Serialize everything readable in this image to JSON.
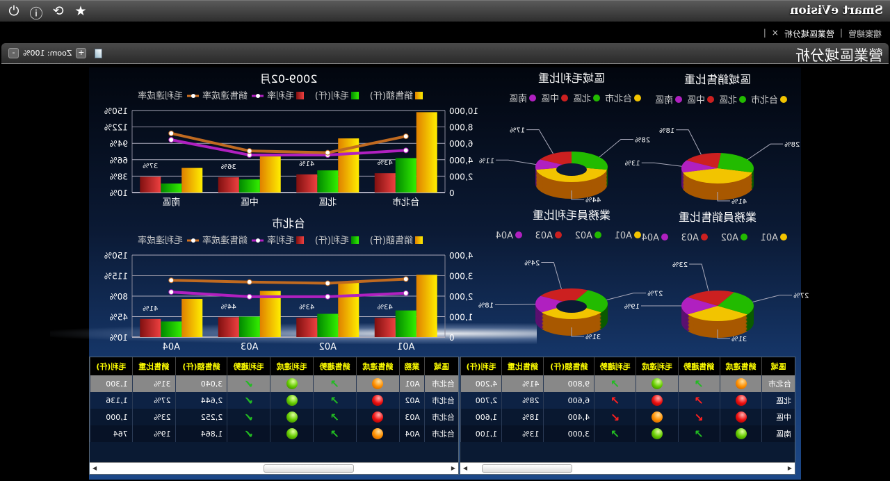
{
  "app": {
    "title": "Smart eVision",
    "icons": [
      "star-icon",
      "refresh-icon",
      "help-icon",
      "power-icon"
    ]
  },
  "tabs": [
    {
      "label": "檔案總管"
    },
    {
      "label": "營業區域分析",
      "close": "×"
    }
  ],
  "page": {
    "title": "營業區域分析",
    "zoom_label": "Zoom: 100%",
    "zoom_in": "+",
    "zoom_out": "-"
  },
  "colors": {
    "sales": "#f5c000",
    "profit": "#22cc00",
    "margin": "#d02020",
    "sales_rate": "#b020c0",
    "profit_rate": "#d07020",
    "purple": "#b020c0"
  },
  "chart_data": [
    {
      "type": "bar",
      "title": "2009-02月",
      "categories": [
        "台北市",
        "北區",
        "中區",
        "南區"
      ],
      "legend": [
        "銷售額(仟)",
        "毛利(仟)",
        "毛利率",
        "銷售達成率",
        "毛利達成率"
      ],
      "left_axis": {
        "range": [
          0,
          10000
        ],
        "ticks": [
          "0",
          "2,000",
          "4,000",
          "6,000",
          "8,000",
          "10,000"
        ]
      },
      "right_axis": {
        "range": [
          10,
          150
        ],
        "ticks": [
          "10%",
          "38%",
          "66%",
          "94%",
          "122%",
          "150%"
        ]
      },
      "series": [
        {
          "name": "銷售額(仟)",
          "kind": "bar",
          "axis": "left",
          "values": [
            9800,
            6600,
            4400,
            3000
          ]
        },
        {
          "name": "毛利(仟)",
          "kind": "bar",
          "axis": "left",
          "values": [
            4200,
            2700,
            1600,
            1100
          ]
        },
        {
          "name": "毛利率",
          "kind": "bar",
          "axis": "right",
          "values": [
            43,
            41,
            36,
            37
          ],
          "labels": [
            "43%",
            "41%",
            "36%",
            "37%"
          ]
        },
        {
          "name": "銷售達成率",
          "kind": "line",
          "axis": "right",
          "values": [
            82,
            74,
            74,
            100
          ]
        },
        {
          "name": "毛利達成率",
          "kind": "line",
          "axis": "right",
          "values": [
            106,
            78,
            81,
            111
          ]
        }
      ]
    },
    {
      "type": "bar",
      "title": "台北市",
      "categories": [
        "A01",
        "A02",
        "A03",
        "A04"
      ],
      "legend": [
        "銷售額(仟)",
        "毛利(仟)",
        "毛利率",
        "銷售達成率",
        "毛利達成率"
      ],
      "left_axis": {
        "range": [
          0,
          4000
        ],
        "ticks": [
          "0",
          "1,000",
          "2,000",
          "3,000",
          "4,000"
        ]
      },
      "right_axis": {
        "range": [
          10,
          150
        ],
        "ticks": [
          "10%",
          "45%",
          "80%",
          "115%",
          "150%"
        ]
      },
      "series": [
        {
          "name": "銷售額(仟)",
          "kind": "bar",
          "axis": "left",
          "values": [
            3040,
            2644,
            2252,
            1864
          ]
        },
        {
          "name": "毛利(仟)",
          "kind": "bar",
          "axis": "left",
          "values": [
            1300,
            1136,
            1000,
            764
          ]
        },
        {
          "name": "毛利率",
          "kind": "bar",
          "axis": "right",
          "values": [
            43,
            43,
            44,
            41
          ],
          "labels": [
            "43%",
            "43%",
            "44%",
            "41%"
          ]
        },
        {
          "name": "銷售達成率",
          "kind": "line",
          "axis": "right",
          "values": [
            85,
            79,
            79,
            87
          ]
        },
        {
          "name": "毛利達成率",
          "kind": "line",
          "axis": "right",
          "values": [
            109,
            102,
            104,
            107
          ]
        }
      ]
    },
    {
      "type": "pie",
      "title": "區域銷售比重",
      "categories": [
        "台北市",
        "北區",
        "中區",
        "南區"
      ],
      "values": [
        41,
        28,
        18,
        13
      ],
      "labels": [
        "41%",
        "28%",
        "18%",
        "13%"
      ],
      "donut": false
    },
    {
      "type": "pie",
      "title": "區域毛利比重",
      "categories": [
        "台北市",
        "北區",
        "中區",
        "南區"
      ],
      "values": [
        44,
        28,
        17,
        11
      ],
      "labels": [
        "44%",
        "28%",
        "17%",
        "11%"
      ],
      "donut": true
    },
    {
      "type": "pie",
      "title": "業務員銷售比重",
      "categories": [
        "A01",
        "A02",
        "A03",
        "A04"
      ],
      "values": [
        31,
        27,
        23,
        19
      ],
      "labels": [
        "31%",
        "27%",
        "23%",
        "19%"
      ],
      "donut": false
    },
    {
      "type": "pie",
      "title": "業務員毛利比重",
      "categories": [
        "A01",
        "A02",
        "A03",
        "A04"
      ],
      "values": [
        31,
        27,
        24,
        18
      ],
      "labels": [
        "31%",
        "27%",
        "24%",
        "18%"
      ],
      "donut": true
    }
  ],
  "region_table": {
    "headers": [
      "區域",
      "銷售達成",
      "銷售趨勢",
      "毛利達成",
      "毛利趨勢",
      "銷售額(仟)",
      "銷售比重",
      "毛利(仟)"
    ],
    "rows": [
      {
        "region": "台北市",
        "sales_status": "orange",
        "sales_trend": "up-green",
        "profit_status": "green",
        "profit_trend": "up-green",
        "sales": "9,800",
        "share": "41%",
        "profit": "4,200"
      },
      {
        "region": "北區",
        "sales_status": "red",
        "sales_trend": "up-red",
        "profit_status": "red",
        "profit_trend": "up-red",
        "sales": "6,600",
        "share": "28%",
        "profit": "2,700"
      },
      {
        "region": "中區",
        "sales_status": "red",
        "sales_trend": "down-red",
        "profit_status": "orange",
        "profit_trend": "down-red",
        "sales": "4,400",
        "share": "18%",
        "profit": "1,600"
      },
      {
        "region": "南區",
        "sales_status": "green",
        "sales_trend": "up-green",
        "profit_status": "green",
        "profit_trend": "up-green",
        "sales": "3,000",
        "share": "13%",
        "profit": "1,100"
      }
    ]
  },
  "rep_table": {
    "headers": [
      "區域",
      "業務",
      "銷售達成",
      "銷售趨勢",
      "毛利達成",
      "毛利趨勢",
      "銷售額(仟)",
      "銷售比重",
      "毛利(仟)"
    ],
    "rows": [
      {
        "region": "台北市",
        "rep": "A01",
        "sales_status": "orange",
        "sales_trend": "up-green",
        "profit_status": "green",
        "profit_trend": "check-green",
        "sales": "3,040",
        "share": "31%",
        "profit": "1,300"
      },
      {
        "region": "台北市",
        "rep": "A02",
        "sales_status": "red",
        "sales_trend": "up-green",
        "profit_status": "green",
        "profit_trend": "check-green",
        "sales": "2,644",
        "share": "27%",
        "profit": "1,136"
      },
      {
        "region": "台北市",
        "rep": "A03",
        "sales_status": "red",
        "sales_trend": "up-green",
        "profit_status": "green",
        "profit_trend": "check-green",
        "sales": "2,252",
        "share": "23%",
        "profit": "1,000"
      },
      {
        "region": "台北市",
        "rep": "A04",
        "sales_status": "orange",
        "sales_trend": "up-green",
        "profit_status": "green",
        "profit_trend": "check-green",
        "sales": "1,864",
        "share": "19%",
        "profit": "764"
      }
    ]
  }
}
